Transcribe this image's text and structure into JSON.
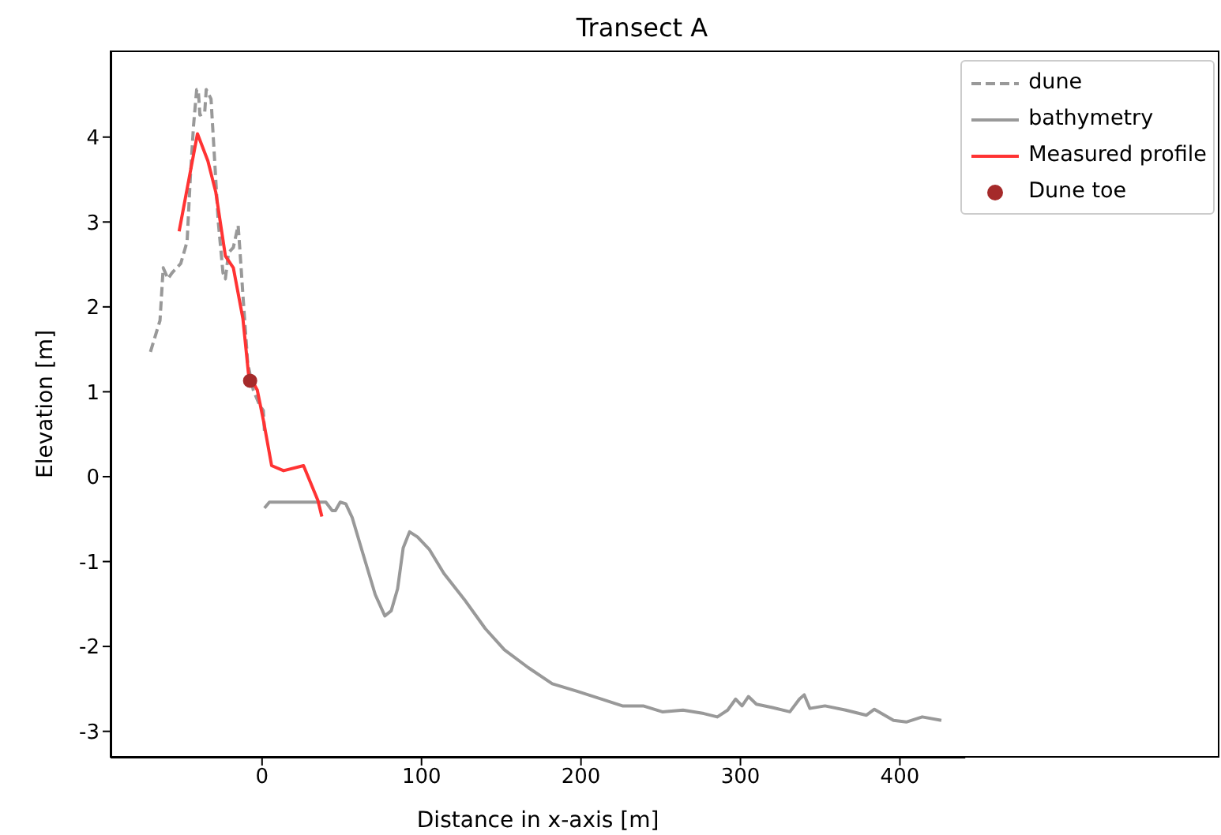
{
  "chart_data": {
    "type": "line",
    "title": "Transect A",
    "xlabel": "Distance in x-axis [m]",
    "ylabel": "Elevation [m]",
    "xlim": [
      -95,
      441
    ],
    "ylim": [
      -3.31,
      5.02
    ],
    "xticks": [
      0,
      100,
      200,
      300,
      400
    ],
    "yticks": [
      -3,
      -2,
      -1,
      0,
      1,
      2,
      3,
      4
    ],
    "grid": false,
    "legend": "top right",
    "series": [
      {
        "name": "dune",
        "color": "#999999",
        "line_style": "dashed",
        "marker": "none",
        "x": [
          -70,
          -64,
          -62,
          -59,
          -56.5,
          -51,
          -47,
          -45,
          -43,
          -41,
          -40,
          -39,
          -36,
          -35,
          -32,
          -30,
          -27.5,
          -24.5,
          -23,
          -21,
          -18,
          -15,
          -14,
          -12,
          -9,
          -5.5,
          -1.5,
          0.8,
          1.5
        ],
        "values": [
          1.47,
          1.84,
          2.46,
          2.33,
          2.4,
          2.51,
          2.77,
          3.52,
          4.13,
          4.56,
          4.56,
          4.26,
          4.28,
          4.56,
          4.45,
          3.81,
          3.01,
          2.4,
          2.33,
          2.64,
          2.7,
          2.96,
          2.7,
          2.14,
          1.34,
          1.02,
          0.84,
          0.78,
          0.54
        ]
      },
      {
        "name": "bathymetry",
        "color": "#999999",
        "line_style": "solid",
        "marker": "none",
        "x": [
          1.5,
          4.6,
          40,
          44,
          46,
          49,
          52.5,
          56.5,
          63,
          71,
          77,
          81,
          85,
          88.5,
          92.5,
          97.5,
          105,
          114,
          127,
          140,
          152,
          167,
          182,
          198,
          213,
          226,
          239,
          251,
          264,
          277,
          285.5,
          292,
          297,
          301,
          305,
          310,
          320,
          331,
          337,
          340,
          343.5,
          353,
          366,
          379,
          384,
          396,
          404,
          414,
          426
        ],
        "values": [
          -0.37,
          -0.3,
          -0.3,
          -0.4,
          -0.4,
          -0.3,
          -0.32,
          -0.48,
          -0.89,
          -1.39,
          -1.64,
          -1.58,
          -1.32,
          -0.84,
          -0.65,
          -0.71,
          -0.86,
          -1.14,
          -1.45,
          -1.79,
          -2.04,
          -2.25,
          -2.44,
          -2.53,
          -2.62,
          -2.7,
          -2.7,
          -2.77,
          -2.75,
          -2.79,
          -2.83,
          -2.75,
          -2.62,
          -2.7,
          -2.59,
          -2.68,
          -2.72,
          -2.77,
          -2.62,
          -2.57,
          -2.73,
          -2.7,
          -2.75,
          -2.81,
          -2.74,
          -2.87,
          -2.89,
          -2.83,
          -2.87
        ]
      },
      {
        "name": "Measured profile",
        "color": "#ff3333",
        "line_style": "solid",
        "marker": "none",
        "x": [
          -52,
          -40.5,
          -34,
          -29,
          -23,
          -18,
          -12,
          -8.5,
          -3,
          1,
          6,
          13.5,
          26,
          35,
          37.5
        ],
        "values": [
          2.89,
          4.04,
          3.72,
          3.35,
          2.6,
          2.46,
          1.86,
          1.21,
          1.02,
          0.65,
          0.13,
          0.07,
          0.13,
          -0.28,
          -0.47
        ]
      },
      {
        "name": "Dune toe",
        "type": "scatter",
        "color": "#a52a2a",
        "marker": "circle",
        "x": [
          -7.5
        ],
        "values": [
          1.13
        ]
      }
    ]
  }
}
